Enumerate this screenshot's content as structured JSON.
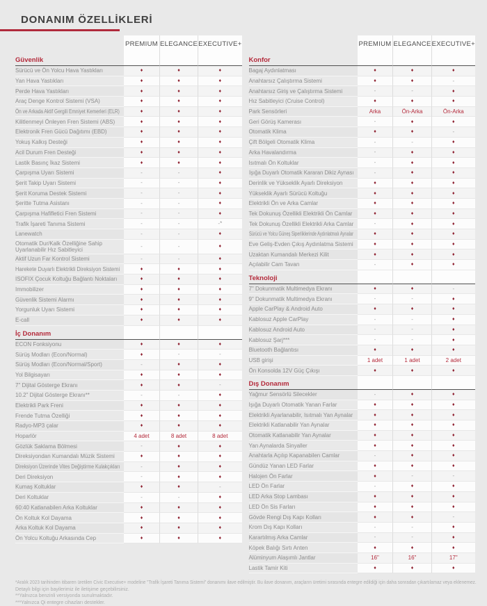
{
  "page": {
    "title": "DONANIM ÖZELLİKLERİ",
    "columns": [
      "PREMIUM",
      "ELEGANCE",
      "EXECUTIVE+"
    ],
    "legend": {
      "standard": "♦",
      "not_available": "-"
    },
    "colors": {
      "accent_red": "#b4293a",
      "diamond": "#8e1f2f",
      "title_underline": "#b02a3c",
      "background": "#e9e9e9"
    }
  },
  "left_table": {
    "sections": [
      {
        "title": "Güvenlik",
        "rows": [
          {
            "label": "Sürücü ve Ön Yolcu Hava Yastıkları",
            "values": [
              "♦",
              "♦",
              "♦"
            ]
          },
          {
            "label": "Yan Hava Yastıkları",
            "values": [
              "♦",
              "♦",
              "♦"
            ]
          },
          {
            "label": "Perde Hava Yastıkları",
            "values": [
              "♦",
              "♦",
              "♦"
            ]
          },
          {
            "label": "Araç Denge Kontrol Sistemi (VSA)",
            "values": [
              "♦",
              "♦",
              "♦"
            ]
          },
          {
            "label": "Ön ve Arkada Aktif Gergili Emniyet Kemerleri (ELR)",
            "values": [
              "♦",
              "♦",
              "♦"
            ]
          },
          {
            "label": "Kilitlenmeyi Önleyen Fren Sistemi (ABS)",
            "values": [
              "♦",
              "♦",
              "♦"
            ]
          },
          {
            "label": "Elektronik Fren Gücü Dağıtımı (EBD)",
            "values": [
              "♦",
              "♦",
              "♦"
            ]
          },
          {
            "label": "Yokuş Kalkış Desteği",
            "values": [
              "♦",
              "♦",
              "♦"
            ]
          },
          {
            "label": "Acil Durum Fren Desteği",
            "values": [
              "♦",
              "♦",
              "♦"
            ]
          },
          {
            "label": "Lastik Basınç İkaz Sistemi",
            "values": [
              "♦",
              "♦",
              "♦"
            ]
          },
          {
            "label": "Çarpışma Uyarı Sistemi",
            "values": [
              "-",
              "-",
              "♦"
            ]
          },
          {
            "label": "Şerit Takip Uyarı Sistemi",
            "values": [
              "-",
              "-",
              "♦"
            ]
          },
          {
            "label": "Şerit Koruma Destek Sistemi",
            "values": [
              "-",
              "-",
              "♦"
            ]
          },
          {
            "label": "Şeritte Tutma Asistanı",
            "values": [
              "-",
              "-",
              "♦"
            ]
          },
          {
            "label": "Çarpışma Hafifletici Fren Sistemi",
            "values": [
              "-",
              "-",
              "♦"
            ]
          },
          {
            "label": "Trafik İşareti Tanıma Sistemi",
            "values": [
              "-",
              "-",
              "-*"
            ]
          },
          {
            "label": "Lanewatch",
            "values": [
              "-",
              "-",
              "♦"
            ]
          },
          {
            "label": "Otomatik Dur/Kalk Özelliğine Sahip Uyarlanabilir Hız Sabitleyici",
            "values": [
              "-",
              "-",
              "♦"
            ]
          },
          {
            "label": "Aktif Uzun Far Kontrol Sistemi",
            "values": [
              "-",
              "-",
              "♦"
            ]
          },
          {
            "label": "Harekete Duyarlı Elektrikli Direksiyon Sistemi",
            "values": [
              "♦",
              "♦",
              "♦"
            ]
          },
          {
            "label": "ISOFIX Çocuk Koltuğu Bağlantı Noktaları",
            "values": [
              "♦",
              "♦",
              "♦"
            ]
          },
          {
            "label": "Immobilizer",
            "values": [
              "♦",
              "♦",
              "♦"
            ]
          },
          {
            "label": "Güvenlik Sistemi Alarmı",
            "values": [
              "♦",
              "♦",
              "♦"
            ]
          },
          {
            "label": "Yorgunluk Uyarı Sistemi",
            "values": [
              "♦",
              "♦",
              "♦"
            ]
          },
          {
            "label": "E-call",
            "values": [
              "♦",
              "♦",
              "♦"
            ]
          }
        ]
      },
      {
        "title": "İç Donanım",
        "rows": [
          {
            "label": "ECON Fonksiyonu",
            "values": [
              "♦",
              "♦",
              "♦"
            ]
          },
          {
            "label": "Sürüş Modları (Econ/Normal)",
            "values": [
              "♦",
              "-",
              "-"
            ]
          },
          {
            "label": "Sürüş Modları (Econ/Normal/Sport)",
            "values": [
              "-",
              "♦",
              "♦"
            ]
          },
          {
            "label": "Yol Bilgisayarı",
            "values": [
              "♦",
              "♦",
              "♦"
            ]
          },
          {
            "label": "7\" Dijital Gösterge Ekranı",
            "values": [
              "♦",
              "♦",
              "-"
            ]
          },
          {
            "label": "10.2\" Dijital Gösterge Ekranı**",
            "values": [
              "-",
              "-",
              "♦"
            ]
          },
          {
            "label": "Elektrikli Park Freni",
            "values": [
              "♦",
              "♦",
              "♦"
            ]
          },
          {
            "label": "Frende Tutma Özelliği",
            "values": [
              "♦",
              "♦",
              "♦"
            ]
          },
          {
            "label": "Radyo-MP3 çalar",
            "values": [
              "♦",
              "♦",
              "♦"
            ]
          },
          {
            "label": "Hoparlör",
            "values": [
              "4 adet",
              "8 adet",
              "8 adet"
            ]
          },
          {
            "label": "Gözlük Saklama Bölmesi",
            "values": [
              "-",
              "♦",
              "♦"
            ]
          },
          {
            "label": "Direksiyondan Kumandalı Müzik Sistemi",
            "values": [
              "♦",
              "♦",
              "♦"
            ]
          },
          {
            "label": "Direksiyon Üzerinde Vites Değiştirme Kulakçıkları",
            "values": [
              "-",
              "♦",
              "♦"
            ]
          },
          {
            "label": "Deri Direksiyon",
            "values": [
              "-",
              "♦",
              "♦"
            ]
          },
          {
            "label": "Kumaş Koltuklar",
            "values": [
              "♦",
              "♦",
              "-"
            ]
          },
          {
            "label": "Deri Koltuklar",
            "values": [
              "-",
              "-",
              "♦"
            ]
          },
          {
            "label": "60:40 Katlanabilen Arka Koltuklar",
            "values": [
              "♦",
              "♦",
              "♦"
            ]
          },
          {
            "label": "Ön Koltuk Kol Dayama",
            "values": [
              "♦",
              "♦",
              "♦"
            ]
          },
          {
            "label": "Arka Koltuk Kol Dayama",
            "values": [
              "♦",
              "♦",
              "♦"
            ]
          },
          {
            "label": "Ön Yolcu Koltuğu Arkasında Cep",
            "values": [
              "♦",
              "♦",
              "♦"
            ]
          }
        ]
      }
    ]
  },
  "right_table": {
    "sections": [
      {
        "title": "Konfor",
        "rows": [
          {
            "label": "Bagaj Aydınlatması",
            "values": [
              "♦",
              "♦",
              "♦"
            ]
          },
          {
            "label": "Anahtarsız Çalıştırma Sistemi",
            "values": [
              "♦",
              "♦",
              "-"
            ]
          },
          {
            "label": "Anahtarsız Giriş ve Çalıştırma Sistemi",
            "values": [
              "-",
              "-",
              "♦"
            ]
          },
          {
            "label": "Hız Sabitleyici (Cruise Control)",
            "values": [
              "♦",
              "♦",
              "♦"
            ]
          },
          {
            "label": "Park Sensörleri",
            "values": [
              "Arka",
              "Ön-Arka",
              "Ön-Arka"
            ]
          },
          {
            "label": "Geri Görüş Kamerası",
            "values": [
              "-",
              "♦",
              "♦"
            ]
          },
          {
            "label": "Otomatik Klima",
            "values": [
              "♦",
              "♦",
              "-"
            ]
          },
          {
            "label": "Çift Bölgeli Otomatik Klima",
            "values": [
              "-",
              "-",
              "♦"
            ]
          },
          {
            "label": "Arka Havalandırma",
            "values": [
              "-",
              "♦",
              "♦"
            ]
          },
          {
            "label": "Isıtmalı Ön Koltuklar",
            "values": [
              "-",
              "♦",
              "♦"
            ]
          },
          {
            "label": "Işığa Duyarlı Otomatik Kararan Dikiz Aynası",
            "values": [
              "-",
              "♦",
              "♦"
            ]
          },
          {
            "label": "Derinlik ve Yükseklik Ayarlı Direksiyon",
            "values": [
              "♦",
              "♦",
              "♦"
            ]
          },
          {
            "label": "Yükseklik Ayarlı Sürücü Koltuğu",
            "values": [
              "♦",
              "♦",
              "♦"
            ]
          },
          {
            "label": "Elektrikli Ön ve Arka Camlar",
            "values": [
              "♦",
              "♦",
              "♦"
            ]
          },
          {
            "label": "Tek Dokunuş Özellikli Elektrikli Ön Camlar",
            "values": [
              "♦",
              "♦",
              "♦"
            ]
          },
          {
            "label": "Tek Dokunuş Özellikli Elektrikli Arka Camlar",
            "values": [
              "-",
              "♦",
              "♦"
            ]
          },
          {
            "label": "Sürücü ve Yolcu Güneş Siperliklerinde Aydınlatmalı Aynalar",
            "values": [
              "♦",
              "♦",
              "♦"
            ]
          },
          {
            "label": "Eve Geliş-Evden Çıkış Aydınlatma Sistemi",
            "values": [
              "♦",
              "♦",
              "♦"
            ]
          },
          {
            "label": "Uzaktan Kumandalı Merkezi Kilit",
            "values": [
              "♦",
              "♦",
              "♦"
            ]
          },
          {
            "label": "Açılabilir Cam Tavan",
            "values": [
              "-",
              "♦",
              "♦"
            ]
          }
        ]
      },
      {
        "title": "Teknoloji",
        "rows": [
          {
            "label": "7\" Dokunmatik Multimedya Ekranı",
            "values": [
              "♦",
              "♦",
              "-"
            ]
          },
          {
            "label": "9\" Dokunmatik Multimedya Ekranı",
            "values": [
              "-",
              "-",
              "♦"
            ]
          },
          {
            "label": "Apple CarPlay & Android Auto",
            "values": [
              "♦",
              "♦",
              "♦"
            ]
          },
          {
            "label": "Kablosuz Apple CarPlay",
            "values": [
              "-",
              "-",
              "♦"
            ]
          },
          {
            "label": "Kablosuz Android Auto",
            "values": [
              "-",
              "-",
              "♦"
            ]
          },
          {
            "label": "Kablosuz Şarj***",
            "values": [
              "-",
              "-",
              "♦"
            ]
          },
          {
            "label": "Bluetooth Bağlantısı",
            "values": [
              "♦",
              "♦",
              "♦"
            ]
          },
          {
            "label": "USB girişi",
            "values": [
              "1 adet",
              "1 adet",
              "2 adet"
            ]
          },
          {
            "label": "Ön Konsolda 12V Güç Çıkışı",
            "values": [
              "♦",
              "♦",
              "♦"
            ]
          }
        ]
      },
      {
        "title": "Dış Donanım",
        "rows": [
          {
            "label": "Yağmur Sensörlü Silecekler",
            "values": [
              "-",
              "♦",
              "♦"
            ]
          },
          {
            "label": "Işığa Duyarlı Otomatik Yanan Farlar",
            "values": [
              "♦",
              "♦",
              "♦"
            ]
          },
          {
            "label": "Elektrikli Ayarlanabilir, Isıtmalı Yan Aynalar",
            "values": [
              "♦",
              "♦",
              "♦"
            ]
          },
          {
            "label": "Elektrikli Katlanabilir Yan Aynalar",
            "values": [
              "♦",
              "♦",
              "♦"
            ]
          },
          {
            "label": "Otomatik Katlanabilir Yan Aynalar",
            "values": [
              "♦",
              "♦",
              "♦"
            ]
          },
          {
            "label": "Yan Aynalarda Sinyaller",
            "values": [
              "♦",
              "♦",
              "♦"
            ]
          },
          {
            "label": "Anahtarla Açılıp Kapanabilen Camlar",
            "values": [
              "-",
              "♦",
              "♦"
            ]
          },
          {
            "label": "Gündüz Yanan LED Farlar",
            "values": [
              "♦",
              "♦",
              "♦"
            ]
          },
          {
            "label": "Halojen Ön Farlar",
            "values": [
              "♦",
              "-",
              "-"
            ]
          },
          {
            "label": "LED Ön Farlar",
            "values": [
              "-",
              "♦",
              "♦"
            ]
          },
          {
            "label": "LED Arka Stop Lambası",
            "values": [
              "♦",
              "♦",
              "♦"
            ]
          },
          {
            "label": "LED Ön Sis Farları",
            "values": [
              "♦",
              "♦",
              "♦"
            ]
          },
          {
            "label": "Gövde Rengi Dış Kapı Kolları",
            "values": [
              "♦",
              "♦",
              "-"
            ]
          },
          {
            "label": "Krom Dış Kapı Kolları",
            "values": [
              "-",
              "-",
              "♦"
            ]
          },
          {
            "label": "Karartılmış Arka Camlar",
            "values": [
              "-",
              "-",
              "♦"
            ]
          },
          {
            "label": "Köpek Balığı Sırtı Anten",
            "values": [
              "♦",
              "♦",
              "♦"
            ]
          },
          {
            "label": "Alüminyum Alaşımlı Jantlar",
            "values": [
              "16\"",
              "16\"",
              "17\""
            ]
          },
          {
            "label": "Lastik Tamir Kiti",
            "values": [
              "♦",
              "♦",
              "♦"
            ]
          }
        ]
      }
    ]
  },
  "footnotes": [
    "*Aralık 2023 tarihinden itibaren üretilen Civic Executive+ modeline \"Trafik İşareti Tanıma Sistemi\" donanımı ilave edilmiştir. Bu ilave donanım, araçların üretimi sırasında entegre edildiği için daha sonradan çıkartılamaz veya eklenemez.",
    "Detaylı bilgi için bayilerimiz ile iletişime geçebilirsiniz.",
    "**Yalnızca benzinli versiyonda sunulmaktadır.",
    "***Yalnızca Qi entegre cihazları destekler."
  ]
}
